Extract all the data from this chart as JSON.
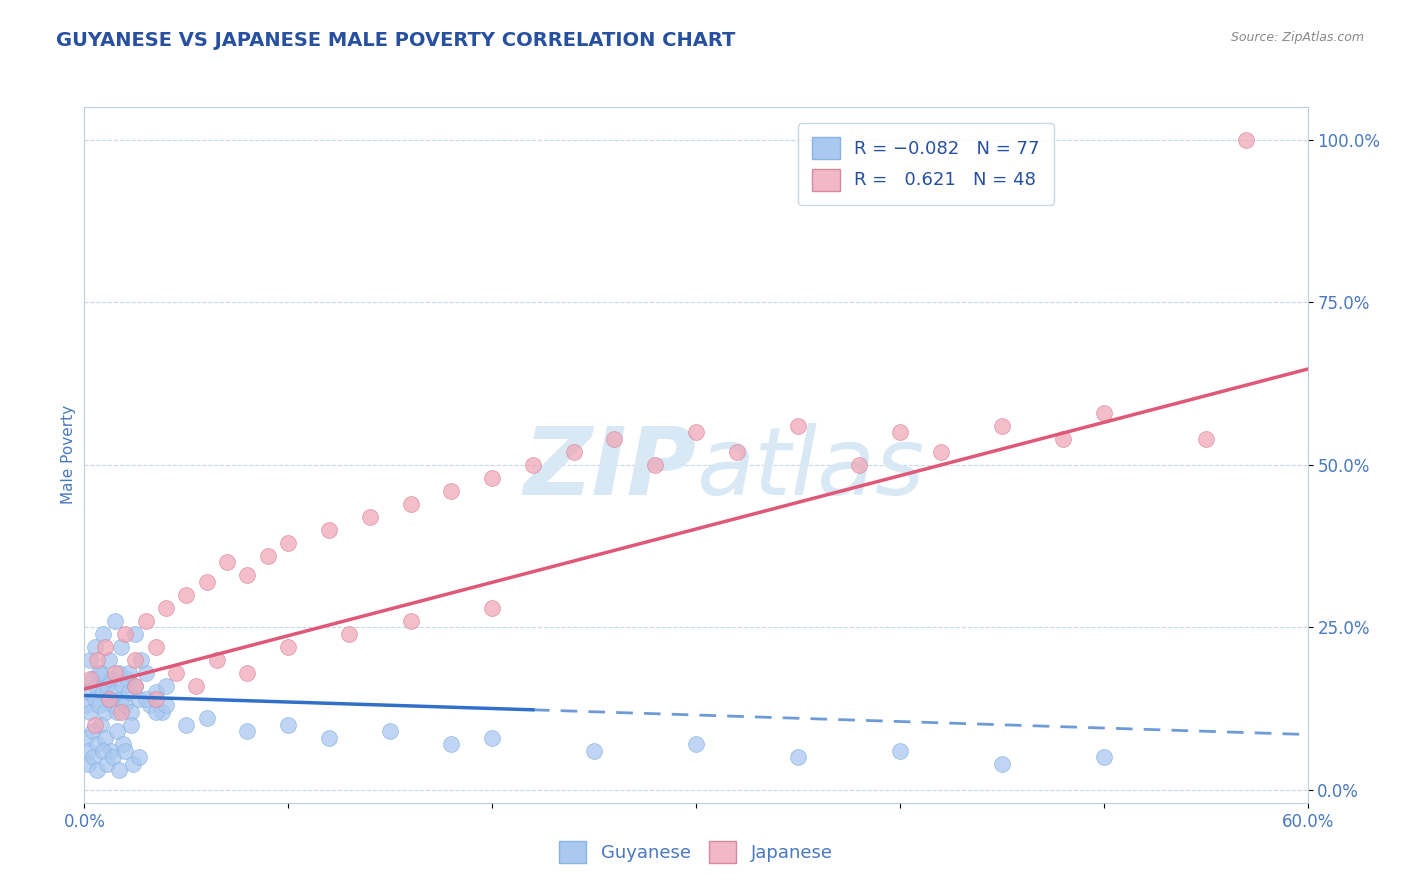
{
  "title": "GUYANESE VS JAPANESE MALE POVERTY CORRELATION CHART",
  "source_text": "Source: ZipAtlas.com",
  "ylabel": "Male Poverty",
  "xmin": 0.0,
  "xmax": 0.6,
  "ymin": -0.02,
  "ymax": 1.05,
  "yticks": [
    0.0,
    0.25,
    0.5,
    0.75,
    1.0
  ],
  "ytick_labels": [
    "0.0%",
    "25.0%",
    "50.0%",
    "75.0%",
    "100.0%"
  ],
  "xticks": [
    0.0,
    0.1,
    0.2,
    0.3,
    0.4,
    0.5,
    0.6
  ],
  "guyanese_color": "#aac8f0",
  "japanese_color": "#f0a8b8",
  "blue_line_color": "#3070c8",
  "pink_line_color": "#e05878",
  "legend_blue_color": "#aac8f0",
  "legend_pink_color": "#f0b8c8",
  "R_guyanese": -0.082,
  "N_guyanese": 77,
  "R_japanese": 0.621,
  "N_japanese": 48,
  "title_color": "#2850a0",
  "axis_label_color": "#4878c0",
  "grid_color": "#c8d8e8",
  "watermark_color": "#d8e8f4",
  "background_color": "#ffffff",
  "source_color": "#888888",
  "blue_line_solid_end": 0.22,
  "blue_slope": -0.1,
  "blue_intercept": 0.145,
  "pink_slope": 0.82,
  "pink_intercept": 0.155,
  "guyanese_x": [
    0.001,
    0.002,
    0.003,
    0.004,
    0.005,
    0.006,
    0.007,
    0.008,
    0.009,
    0.01,
    0.011,
    0.012,
    0.013,
    0.014,
    0.015,
    0.016,
    0.017,
    0.018,
    0.019,
    0.02,
    0.021,
    0.022,
    0.023,
    0.025,
    0.027,
    0.03,
    0.032,
    0.035,
    0.038,
    0.04,
    0.003,
    0.005,
    0.007,
    0.009,
    0.012,
    0.015,
    0.018,
    0.022,
    0.025,
    0.028,
    0.001,
    0.002,
    0.004,
    0.006,
    0.008,
    0.01,
    0.013,
    0.016,
    0.019,
    0.023,
    0.002,
    0.004,
    0.006,
    0.009,
    0.011,
    0.014,
    0.017,
    0.02,
    0.024,
    0.027,
    0.03,
    0.035,
    0.04,
    0.05,
    0.06,
    0.08,
    0.1,
    0.12,
    0.15,
    0.18,
    0.2,
    0.25,
    0.3,
    0.35,
    0.4,
    0.45,
    0.5
  ],
  "guyanese_y": [
    0.13,
    0.15,
    0.12,
    0.17,
    0.14,
    0.16,
    0.13,
    0.18,
    0.15,
    0.12,
    0.16,
    0.14,
    0.17,
    0.13,
    0.15,
    0.12,
    0.18,
    0.14,
    0.16,
    0.13,
    0.17,
    0.15,
    0.12,
    0.16,
    0.14,
    0.18,
    0.13,
    0.15,
    0.12,
    0.16,
    0.2,
    0.22,
    0.18,
    0.24,
    0.2,
    0.26,
    0.22,
    0.18,
    0.24,
    0.2,
    0.08,
    0.06,
    0.09,
    0.07,
    0.1,
    0.08,
    0.06,
    0.09,
    0.07,
    0.1,
    0.04,
    0.05,
    0.03,
    0.06,
    0.04,
    0.05,
    0.03,
    0.06,
    0.04,
    0.05,
    0.14,
    0.12,
    0.13,
    0.1,
    0.11,
    0.09,
    0.1,
    0.08,
    0.09,
    0.07,
    0.08,
    0.06,
    0.07,
    0.05,
    0.06,
    0.04,
    0.05
  ],
  "japanese_x": [
    0.003,
    0.006,
    0.01,
    0.015,
    0.02,
    0.025,
    0.03,
    0.035,
    0.04,
    0.05,
    0.06,
    0.07,
    0.08,
    0.09,
    0.1,
    0.12,
    0.14,
    0.16,
    0.18,
    0.2,
    0.22,
    0.24,
    0.26,
    0.28,
    0.3,
    0.32,
    0.35,
    0.38,
    0.4,
    0.42,
    0.45,
    0.48,
    0.5,
    0.55,
    0.57,
    0.005,
    0.012,
    0.018,
    0.025,
    0.035,
    0.045,
    0.055,
    0.065,
    0.08,
    0.1,
    0.13,
    0.16,
    0.2
  ],
  "japanese_y": [
    0.17,
    0.2,
    0.22,
    0.18,
    0.24,
    0.2,
    0.26,
    0.22,
    0.28,
    0.3,
    0.32,
    0.35,
    0.33,
    0.36,
    0.38,
    0.4,
    0.42,
    0.44,
    0.46,
    0.48,
    0.5,
    0.52,
    0.54,
    0.5,
    0.55,
    0.52,
    0.56,
    0.5,
    0.55,
    0.52,
    0.56,
    0.54,
    0.58,
    0.54,
    1.0,
    0.1,
    0.14,
    0.12,
    0.16,
    0.14,
    0.18,
    0.16,
    0.2,
    0.18,
    0.22,
    0.24,
    0.26,
    0.28
  ]
}
